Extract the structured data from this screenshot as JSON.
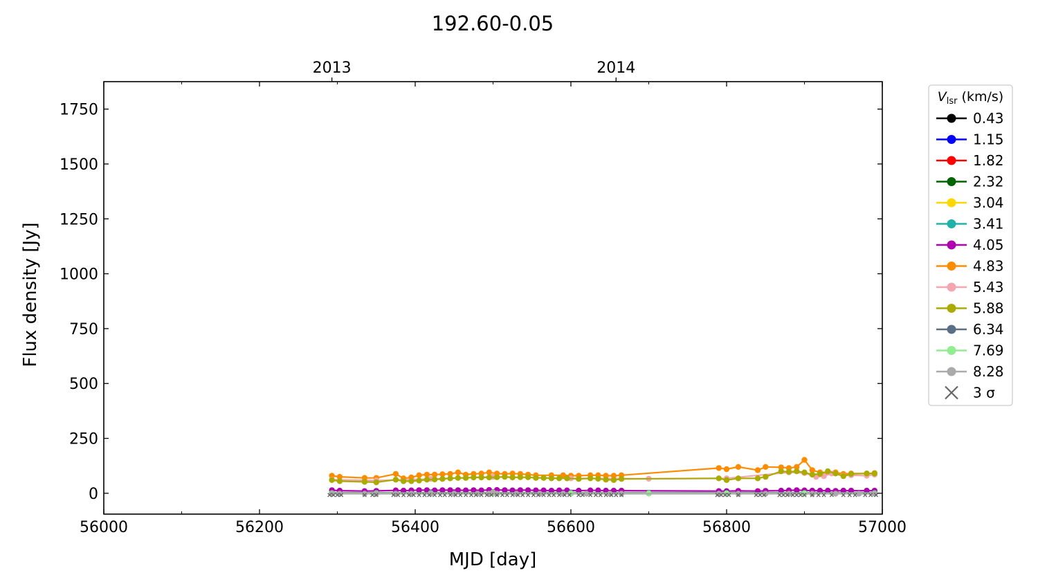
{
  "chart_data": {
    "type": "line",
    "title": "192.60-0.05",
    "xlabel": "MJD [day]",
    "ylabel": "Flux density [Jy]",
    "xlim": [
      56000,
      57000
    ],
    "ylim": [
      -95,
      1875
    ],
    "xticks": [
      56000,
      56200,
      56400,
      56600,
      56800,
      57000
    ],
    "xtick_labels": [
      "56000",
      "56200",
      "56400",
      "56600",
      "56800",
      "57000"
    ],
    "yticks": [
      0,
      250,
      500,
      750,
      1000,
      1250,
      1500,
      1750
    ],
    "ytick_labels": [
      "0",
      "250",
      "500",
      "750",
      "1000",
      "1250",
      "1500",
      "1750"
    ],
    "top_axis": {
      "ticks": [
        56293,
        56658
      ],
      "labels": [
        "2013",
        "2014"
      ]
    },
    "grid": false,
    "legend": {
      "title_main": "V",
      "title_sub": "lsr",
      "title_unit": " (km/s)",
      "placement": "outside-right",
      "sigma_label": "3 σ"
    },
    "series": [
      {
        "name": "0.43",
        "color": "#000000",
        "x": [
          56293,
          56350,
          56420,
          56500,
          56600,
          56700,
          56800,
          56900,
          56990
        ],
        "y": [
          0,
          0,
          0,
          0,
          0,
          0,
          0,
          0,
          0
        ]
      },
      {
        "name": "1.15",
        "color": "#0000ff",
        "x": [
          56293,
          56350,
          56420,
          56500,
          56600,
          56700,
          56800,
          56900,
          56990
        ],
        "y": [
          0,
          0,
          0,
          0,
          0,
          0,
          0,
          0,
          0
        ]
      },
      {
        "name": "1.82",
        "color": "#ff0000",
        "x": [
          56293,
          56350,
          56420,
          56500,
          56600,
          56700,
          56800,
          56900,
          56990
        ],
        "y": [
          0,
          0,
          0,
          0,
          0,
          0,
          0,
          0,
          0
        ]
      },
      {
        "name": "2.32",
        "color": "#006400",
        "x": [
          56293,
          56350,
          56420,
          56500,
          56600,
          56700,
          56800,
          56900,
          56990
        ],
        "y": [
          0,
          0,
          0,
          0,
          0,
          0,
          0,
          0,
          0
        ]
      },
      {
        "name": "3.04",
        "color": "#ffd700",
        "x": [
          56293,
          56350,
          56420,
          56500,
          56600,
          56700,
          56800,
          56900,
          56990
        ],
        "y": [
          0,
          0,
          0,
          0,
          0,
          0,
          0,
          0,
          0
        ]
      },
      {
        "name": "3.41",
        "color": "#20b2aa",
        "x": [
          56293,
          56350,
          56420,
          56500,
          56600,
          56700,
          56800,
          56900,
          56990
        ],
        "y": [
          0,
          0,
          0,
          0,
          0,
          0,
          0,
          0,
          0
        ]
      },
      {
        "name": "4.05",
        "color": "#b000b0",
        "x": [
          56293,
          56303,
          56335,
          56350,
          56375,
          56385,
          56395,
          56405,
          56415,
          56425,
          56435,
          56445,
          56455,
          56465,
          56475,
          56485,
          56495,
          56505,
          56515,
          56525,
          56535,
          56545,
          56555,
          56565,
          56575,
          56585,
          56595,
          56610,
          56625,
          56635,
          56645,
          56655,
          56665,
          56790,
          56800,
          56815,
          56840,
          56850,
          56870,
          56880,
          56890,
          56900,
          56910,
          56920,
          56930,
          56940,
          56950,
          56960,
          56980,
          56990
        ],
        "y": [
          14,
          12,
          10,
          11,
          13,
          12,
          13,
          14,
          14,
          13,
          14,
          14,
          14,
          13,
          14,
          13,
          15,
          15,
          14,
          13,
          14,
          14,
          13,
          13,
          12,
          13,
          13,
          12,
          13,
          13,
          12,
          12,
          12,
          10,
          10,
          11,
          10,
          11,
          12,
          13,
          14,
          13,
          12,
          12,
          12,
          11,
          12,
          12,
          12,
          12
        ]
      },
      {
        "name": "4.83",
        "color": "#ff8c00",
        "x": [
          56293,
          56303,
          56335,
          56350,
          56375,
          56385,
          56395,
          56405,
          56415,
          56425,
          56435,
          56445,
          56455,
          56465,
          56475,
          56485,
          56495,
          56505,
          56515,
          56525,
          56535,
          56545,
          56555,
          56575,
          56590,
          56600,
          56610,
          56625,
          56635,
          56645,
          56655,
          56665,
          56790,
          56800,
          56815,
          56840,
          56850,
          56870,
          56880,
          56890,
          56900,
          56910,
          56920,
          56930,
          56940,
          56950,
          56960,
          56980,
          56990
        ],
        "y": [
          80,
          75,
          70,
          70,
          88,
          68,
          72,
          82,
          85,
          85,
          87,
          88,
          95,
          85,
          88,
          90,
          95,
          90,
          88,
          90,
          88,
          85,
          82,
          82,
          82,
          80,
          80,
          82,
          82,
          80,
          80,
          82,
          115,
          110,
          120,
          105,
          120,
          118,
          115,
          120,
          152,
          105,
          95,
          95,
          95,
          88,
          90,
          90,
          92
        ]
      },
      {
        "name": "5.43",
        "color": "#f4a6b0",
        "x": [
          56293,
          56350,
          56420,
          56500,
          56600,
          56700,
          56800,
          56880,
          56900,
          56915,
          56925,
          56935,
          56950,
          56960,
          56980,
          56990
        ],
        "y": [
          62,
          58,
          65,
          75,
          68,
          66,
          68,
          95,
          92,
          75,
          78,
          90,
          80,
          82,
          80,
          85
        ]
      },
      {
        "name": "5.88",
        "color": "#aaaa00",
        "x": [
          56293,
          56303,
          56335,
          56350,
          56375,
          56385,
          56395,
          56405,
          56415,
          56425,
          56435,
          56445,
          56455,
          56465,
          56475,
          56485,
          56495,
          56505,
          56515,
          56525,
          56535,
          56545,
          56555,
          56565,
          56575,
          56585,
          56595,
          56610,
          56625,
          56635,
          56645,
          56655,
          56665,
          56790,
          56800,
          56815,
          56840,
          56850,
          56870,
          56880,
          56890,
          56900,
          56910,
          56920,
          56930,
          56940,
          56950,
          56960,
          56980,
          56990
        ],
        "y": [
          60,
          55,
          52,
          50,
          62,
          55,
          55,
          58,
          62,
          63,
          65,
          68,
          70,
          70,
          72,
          72,
          72,
          73,
          75,
          72,
          73,
          73,
          70,
          70,
          68,
          68,
          68,
          65,
          68,
          66,
          62,
          60,
          65,
          68,
          60,
          68,
          68,
          75,
          100,
          98,
          100,
          95,
          85,
          88,
          100,
          90,
          78,
          88,
          90,
          90
        ]
      },
      {
        "name": "6.34",
        "color": "#5a6e85",
        "x": [
          56293,
          56350,
          56420,
          56500,
          56600,
          56700,
          56800,
          56900,
          56990
        ],
        "y": [
          2,
          2,
          2,
          2,
          2,
          2,
          2,
          2,
          2
        ]
      },
      {
        "name": "7.69",
        "color": "#90ee90",
        "x": [
          56293,
          56350,
          56420,
          56500,
          56600,
          56700,
          56800,
          56900,
          56990
        ],
        "y": [
          0,
          0,
          0,
          0,
          0,
          0,
          0,
          0,
          0
        ]
      },
      {
        "name": "8.28",
        "color": "#aaaaaa",
        "x": [
          56293,
          56303,
          56335,
          56350,
          56375,
          56395,
          56420,
          56450,
          56480,
          56495,
          56500,
          56505,
          56530,
          56560,
          56590,
          56620,
          56650,
          56665,
          56790,
          56815,
          56850,
          56880,
          56910,
          56940,
          56970,
          56990
        ],
        "y": [
          -2,
          -2,
          -2,
          -2,
          -2,
          -2,
          -2,
          -2,
          -2,
          -2,
          5,
          -2,
          -2,
          -2,
          -2,
          -2,
          -2,
          -2,
          -2,
          -2,
          -2,
          -2,
          -2,
          -2,
          -2,
          -2
        ]
      }
    ],
    "sigma_marks": {
      "color": "#666666",
      "x": [
        56290,
        56295,
        56300,
        56305,
        56335,
        56345,
        56350,
        56372,
        56378,
        56385,
        56392,
        56398,
        56405,
        56412,
        56418,
        56425,
        56432,
        56438,
        56445,
        56452,
        56458,
        56465,
        56472,
        56478,
        56485,
        56492,
        56498,
        56505,
        56512,
        56518,
        56525,
        56532,
        56538,
        56545,
        56552,
        56558,
        56565,
        56572,
        56578,
        56585,
        56592,
        56598,
        56610,
        56615,
        56625,
        56632,
        56638,
        56645,
        56652,
        56658,
        56665,
        56788,
        56793,
        56798,
        56803,
        56815,
        56838,
        56843,
        56848,
        56868,
        56873,
        56878,
        56885,
        56890,
        56895,
        56900,
        56910,
        56918,
        56925,
        56935,
        56950,
        56958,
        56965,
        56978,
        56985,
        56992
      ],
      "y": [
        -8,
        -8,
        -8,
        -8,
        -8,
        -8,
        -8,
        -8,
        -8,
        -8,
        -8,
        -8,
        -8,
        -8,
        -8,
        -8,
        -8,
        -8,
        -8,
        -8,
        -8,
        -8,
        -8,
        -8,
        -8,
        -8,
        -8,
        -8,
        -8,
        -8,
        -8,
        -8,
        -8,
        -8,
        -8,
        -8,
        -8,
        -8,
        -8,
        -8,
        -8,
        -8,
        -8,
        -8,
        -8,
        -8,
        -8,
        -8,
        -8,
        -8,
        -8,
        -8,
        -8,
        -8,
        -8,
        -8,
        -8,
        -8,
        -8,
        -8,
        -8,
        -8,
        -8,
        -8,
        -8,
        -8,
        -8,
        -8,
        -8,
        -8,
        -8,
        -8,
        -8,
        -8,
        -8,
        -8
      ]
    }
  }
}
